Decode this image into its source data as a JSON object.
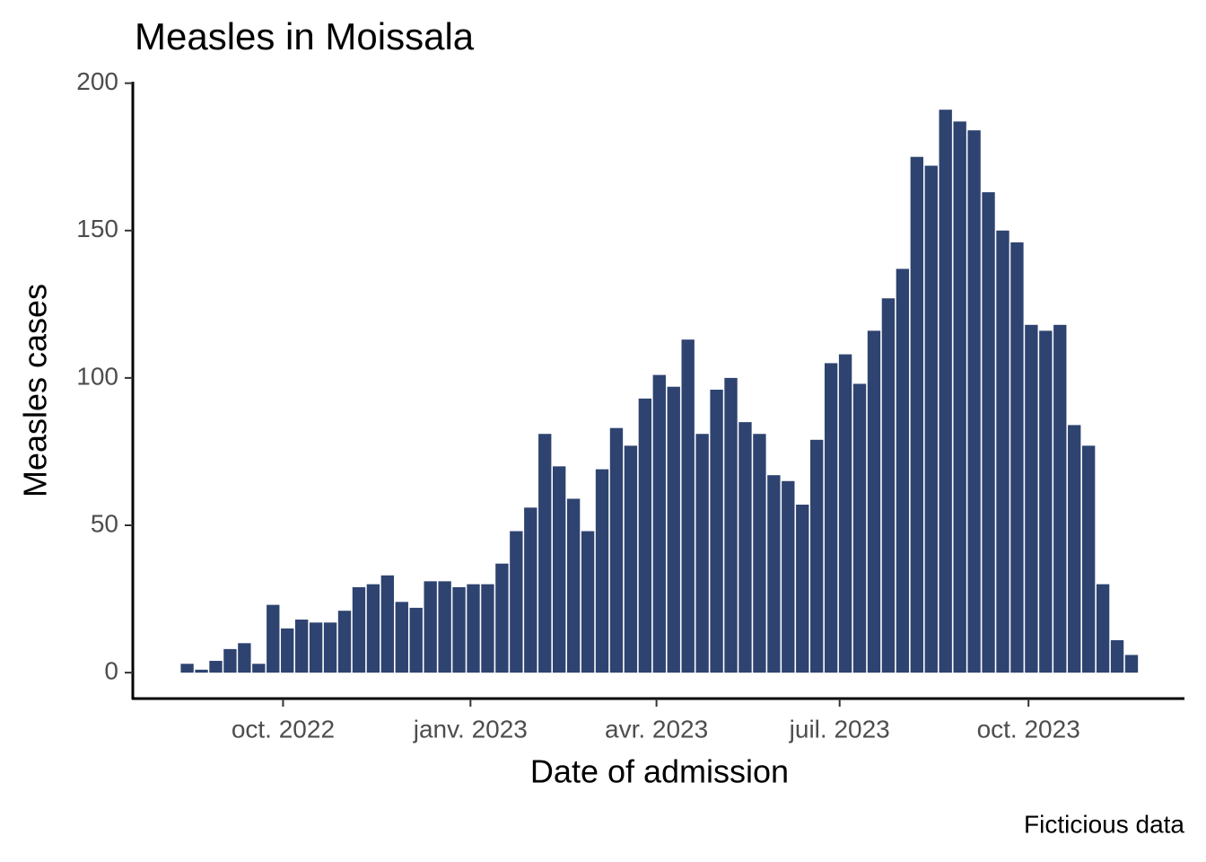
{
  "chart_data": {
    "type": "bar",
    "title": "Measles in Moissala",
    "x_label": "Date of admission",
    "y_label": "Measles cases",
    "caption": "Ficticious data",
    "color": "#2e4370",
    "x": [
      1,
      2,
      3,
      4,
      5,
      6,
      7,
      8,
      9,
      10,
      11,
      12,
      13,
      14,
      15,
      16,
      17,
      18,
      19,
      20,
      21,
      22,
      23,
      24,
      25,
      26,
      27,
      28,
      29,
      30,
      31,
      32,
      33,
      34,
      35,
      36,
      37,
      38,
      39,
      40,
      41,
      42,
      43,
      44,
      45,
      46,
      47,
      48,
      49,
      50,
      51,
      52,
      53,
      54,
      55,
      56,
      57,
      58,
      59,
      60,
      61,
      62,
      63,
      64,
      65,
      66,
      67
    ],
    "values": [
      3,
      1,
      4,
      8,
      10,
      3,
      23,
      15,
      18,
      17,
      17,
      21,
      29,
      30,
      33,
      24,
      22,
      31,
      31,
      29,
      30,
      30,
      37,
      48,
      56,
      81,
      70,
      59,
      48,
      69,
      83,
      77,
      93,
      101,
      97,
      113,
      81,
      96,
      100,
      85,
      81,
      67,
      65,
      57,
      79,
      105,
      108,
      98,
      116,
      127,
      137,
      175,
      172,
      191,
      187,
      184,
      163,
      150,
      146,
      118,
      116,
      118,
      84,
      77,
      30,
      11,
      6
    ],
    "xlim": [
      -2.8,
      70.7
    ],
    "xticks": [
      {
        "value": 7.7,
        "label": "oct. 2022"
      },
      {
        "value": 20.8,
        "label": "janv. 2023"
      },
      {
        "value": 33.8,
        "label": "avr. 2023"
      },
      {
        "value": 46.6,
        "label": "juil. 2023"
      },
      {
        "value": 59.8,
        "label": "oct. 2023"
      }
    ],
    "ylim": [
      -8.8,
      200.5
    ],
    "yticks": [
      0,
      50,
      100,
      150,
      200
    ],
    "grid": false
  }
}
